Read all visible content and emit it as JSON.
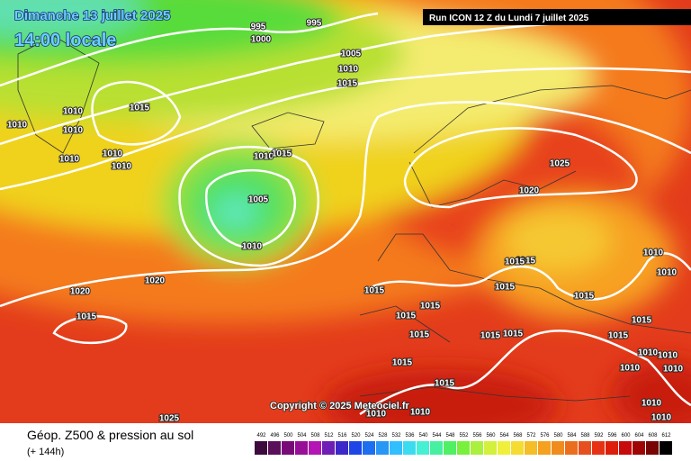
{
  "header": {
    "date": "Dimanche 13 juillet 2025",
    "time": "14:00 locale",
    "run": "Run ICON 12 Z du Lundi 7 juillet 2025"
  },
  "isobar_labels": [
    995,
    995,
    1000,
    1005,
    1010,
    1015,
    1010,
    1010,
    1015,
    1010,
    1010,
    1010,
    1010,
    1010,
    1015,
    1005,
    1010,
    1020,
    1020,
    1015,
    1025,
    1020,
    1015,
    1015,
    1015,
    1015,
    1015,
    1015,
    1015,
    1015,
    1015,
    1015,
    1010,
    1010,
    1015,
    1015,
    1015,
    1015,
    1010,
    1010,
    1010,
    1010,
    1010,
    1010,
    1010,
    1010,
    1025
  ],
  "copyright": "Copyright © 2025 Meteociel.fr",
  "footer": {
    "title": "Géop. Z500 & pression au sol",
    "lead": "(+ 144h)"
  },
  "legend": {
    "labels": [
      492,
      496,
      500,
      504,
      508,
      512,
      516,
      520,
      524,
      528,
      532,
      536,
      540,
      544,
      548,
      552,
      556,
      560,
      564,
      568,
      572,
      576,
      580,
      584,
      588,
      592,
      596,
      600,
      604,
      608,
      612
    ],
    "colors": [
      "#3c0a3c",
      "#5a0f5a",
      "#780a78",
      "#960f96",
      "#b414b4",
      "#6e1eb4",
      "#3c28c8",
      "#1e46e6",
      "#1e6ef0",
      "#2896f5",
      "#32beff",
      "#3cdcf0",
      "#46f0d2",
      "#46f0a0",
      "#50f064",
      "#78f03c",
      "#aaf03c",
      "#d2f03c",
      "#f0f03c",
      "#f5dc32",
      "#f5be28",
      "#f5a01e",
      "#f08c1e",
      "#eb6e1e",
      "#e6501e",
      "#e63214",
      "#dc1e0a",
      "#c80a0a",
      "#a00505",
      "#780505",
      "#000000"
    ]
  }
}
